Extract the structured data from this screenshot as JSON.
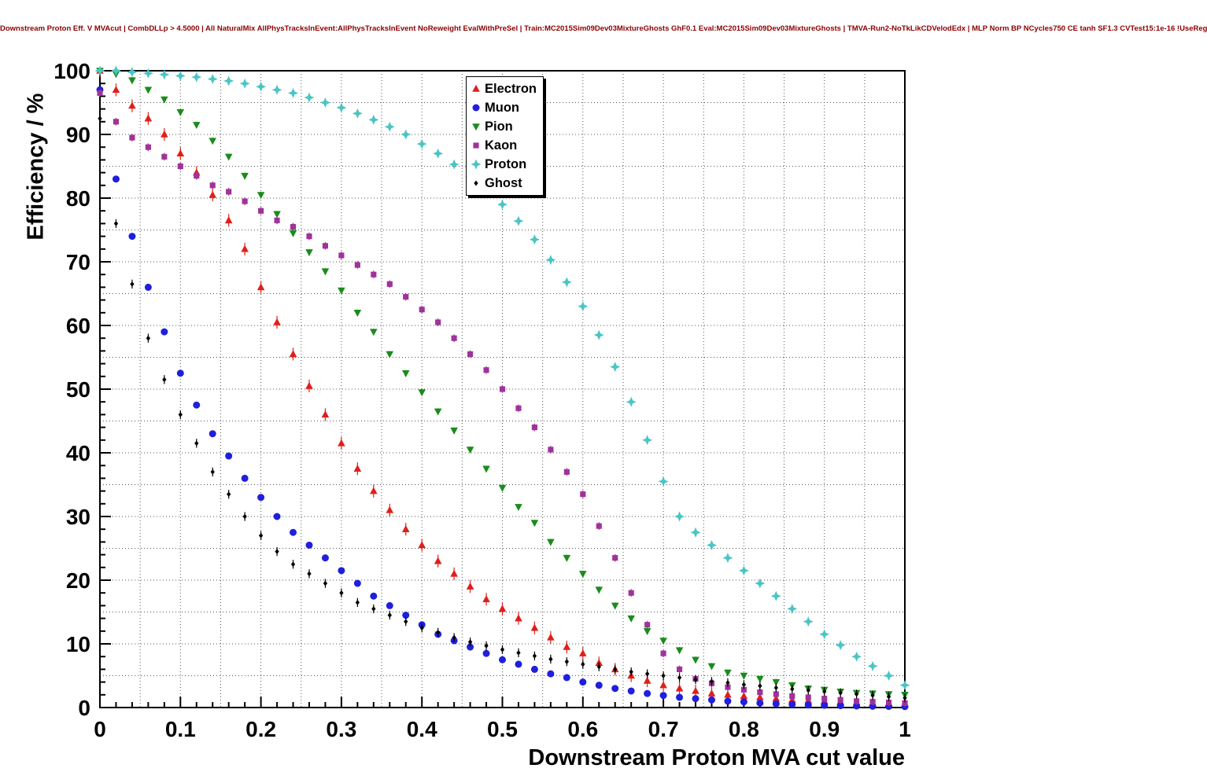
{
  "title": {
    "text": "Downstream Proton Eff. V MVAcut | CombDLLp > 4.5000 | All NaturalMix AllPhysTracksInEvent:AllPhysTracksInEvent NoReweight EvalWithPreSel | Train:MC2015Sim09Dev03MixtureGhosts GhF0.1 Eval:MC2015Sim09Dev03MixtureGhosts | TMVA-Run2-NoTkLikCDVelodEdx | MLP Norm BP NCycles750 CE tanh SF1.3 CVTest15:1e-16 !UseReg",
    "color": "#8b0000"
  },
  "chart_data": {
    "type": "scatter",
    "title": "Downstream Proton Eff. V MVAcut",
    "xlabel": "Downstream Proton MVA cut value",
    "ylabel": "Efficiency / %",
    "xlim": [
      0,
      1
    ],
    "ylim": [
      0,
      100
    ],
    "grid": {
      "show": true,
      "x_step": 0.05,
      "y_step": 5,
      "style": "dotted",
      "color": "#555555"
    },
    "x_ticks": {
      "values": [
        0,
        0.1,
        0.2,
        0.3,
        0.4,
        0.5,
        0.6,
        0.7,
        0.8,
        0.9,
        1
      ],
      "labels": [
        "0",
        "0.1",
        "0.2",
        "0.3",
        "0.4",
        "0.5",
        "0.6",
        "0.7",
        "0.8",
        "0.9",
        "1"
      ]
    },
    "y_ticks": {
      "values": [
        0,
        10,
        20,
        30,
        40,
        50,
        60,
        70,
        80,
        90,
        100
      ],
      "labels": [
        "0",
        "10",
        "20",
        "30",
        "40",
        "50",
        "60",
        "70",
        "80",
        "90",
        "100"
      ]
    },
    "x": [
      0,
      0.02,
      0.04,
      0.06,
      0.08,
      0.1,
      0.12,
      0.14,
      0.16,
      0.18,
      0.2,
      0.22,
      0.24,
      0.26,
      0.28,
      0.3,
      0.32,
      0.34,
      0.36,
      0.38,
      0.4,
      0.42,
      0.44,
      0.46,
      0.48,
      0.5,
      0.52,
      0.54,
      0.56,
      0.58,
      0.6,
      0.62,
      0.64,
      0.66,
      0.68,
      0.7,
      0.72,
      0.74,
      0.76,
      0.78,
      0.8,
      0.82,
      0.84,
      0.86,
      0.88,
      0.9,
      0.92,
      0.94,
      0.96,
      0.98,
      1.0
    ],
    "series": [
      {
        "name": "Electron",
        "marker": "triangle-up",
        "color": "#e01f1a",
        "err": 1.0,
        "values": [
          100,
          97,
          94.5,
          92.5,
          90,
          87,
          84,
          80.5,
          76.5,
          72,
          66,
          60.5,
          55.5,
          50.5,
          46,
          41.5,
          37.5,
          34,
          31,
          28,
          25.5,
          23,
          21,
          19,
          17,
          15.5,
          14,
          12.5,
          11,
          9.5,
          8.5,
          7,
          6,
          5,
          4.2,
          3.5,
          3,
          2.6,
          2.2,
          2,
          1.8,
          1.6,
          1.4,
          1.2,
          1.1,
          1,
          0.9,
          0.8,
          0.7,
          0.6,
          0.5
        ]
      },
      {
        "name": "Muon",
        "marker": "circle",
        "color": "#1f1fdd",
        "err": 0.5,
        "values": [
          97,
          83,
          74,
          66,
          59,
          52.5,
          47.5,
          43,
          39.5,
          36,
          33,
          30,
          27.5,
          25.5,
          23.5,
          21.5,
          19.5,
          17.5,
          16,
          14.5,
          13,
          11.5,
          10.5,
          9.5,
          8.5,
          7.5,
          6.8,
          6,
          5.3,
          4.7,
          4,
          3.5,
          3,
          2.6,
          2.2,
          1.9,
          1.6,
          1.4,
          1.2,
          1,
          0.9,
          0.7,
          0.6,
          0.5,
          0.4,
          0.35,
          0.3,
          0.25,
          0.2,
          0.18,
          0.15
        ]
      },
      {
        "name": "Pion",
        "marker": "triangle-down",
        "color": "#1a8c1a",
        "err": 0.5,
        "values": [
          100,
          99.5,
          98.5,
          97,
          95.5,
          93.5,
          91.5,
          89,
          86.5,
          83.5,
          80.5,
          77.5,
          74.5,
          71.5,
          68.5,
          65.5,
          62,
          59,
          55.5,
          52.5,
          49.5,
          46.5,
          43.5,
          40.5,
          37.5,
          34.5,
          31.5,
          29,
          26,
          23.5,
          21,
          18.5,
          16,
          14,
          12,
          10.5,
          9,
          7.5,
          6.5,
          5.5,
          5,
          4.5,
          4,
          3.5,
          3,
          2.8,
          2.5,
          2.3,
          2.2,
          2.1,
          2
        ]
      },
      {
        "name": "Kaon",
        "marker": "square",
        "color": "#a03299",
        "err": 0.6,
        "values": [
          96.5,
          92,
          89.5,
          88,
          86.5,
          85,
          83.5,
          82,
          81,
          79.5,
          78,
          76.5,
          75.5,
          74,
          72.5,
          71,
          69.5,
          68,
          66.5,
          64.5,
          62.5,
          60.5,
          58,
          55.5,
          53,
          50,
          47,
          44,
          40.5,
          37,
          33.5,
          28.5,
          23.5,
          18,
          13,
          8.5,
          6,
          4.5,
          3.8,
          3.2,
          2.8,
          2.4,
          2.1,
          1.8,
          1.6,
          1.4,
          1.2,
          1,
          0.9,
          0.8,
          0.7
        ]
      },
      {
        "name": "Proton",
        "marker": "star",
        "color": "#4cc4c4",
        "err": 0.5,
        "values": [
          100,
          100,
          99.8,
          99.6,
          99.4,
          99.2,
          99,
          98.7,
          98.4,
          98,
          97.5,
          97,
          96.5,
          95.8,
          95,
          94.2,
          93.3,
          92.3,
          91.2,
          90,
          88.5,
          87,
          85.3,
          83.4,
          81.3,
          79,
          76.4,
          73.5,
          70.3,
          66.8,
          63,
          58.5,
          53.5,
          48,
          42,
          35.5,
          30,
          27.5,
          25.5,
          23.5,
          21.5,
          19.5,
          17.5,
          15.5,
          13.5,
          11.5,
          9.8,
          8,
          6.5,
          5,
          3.5
        ]
      },
      {
        "name": "Ghost",
        "marker": "diamond",
        "color": "#000000",
        "err": 0.7,
        "values": [
          92.5,
          76,
          66.5,
          58,
          51.5,
          46,
          41.5,
          37,
          33.5,
          30,
          27,
          24.5,
          22.5,
          21,
          19.5,
          18,
          16.5,
          15.5,
          14.5,
          13.5,
          12.5,
          11.8,
          11,
          10.3,
          9.7,
          9.1,
          8.6,
          8.1,
          7.6,
          7.2,
          6.8,
          6.4,
          6,
          5.6,
          5.3,
          5,
          4.7,
          4.4,
          4.1,
          3.9,
          3.6,
          3.4,
          3.1,
          2.9,
          2.7,
          2.5,
          2.3,
          2.1,
          1.9,
          1.7,
          1.5
        ]
      }
    ],
    "legend": {
      "position": "top-center-left",
      "entries": [
        "Electron",
        "Muon",
        "Pion",
        "Kaon",
        "Proton",
        "Ghost"
      ]
    }
  }
}
